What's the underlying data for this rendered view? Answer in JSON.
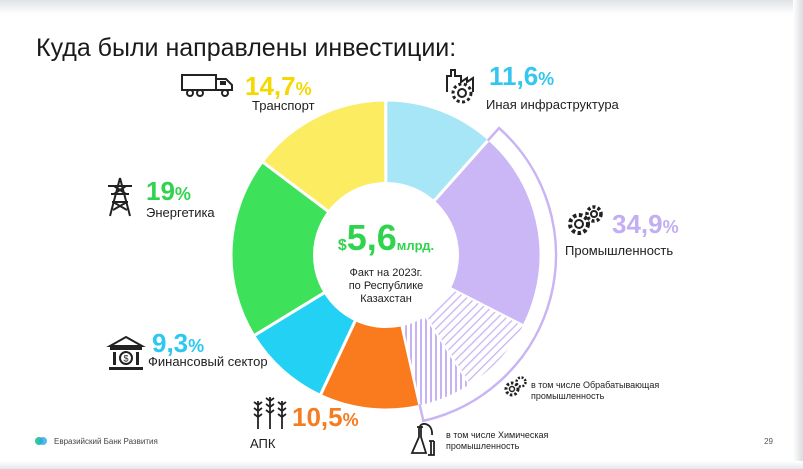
{
  "title": "Куда были направлены инвестиции:",
  "center": {
    "currency": "$",
    "amount": "5,6",
    "unit": "млрд.",
    "note": "Факт на 2023г.\nпо Республике\nКазахстан"
  },
  "chart_data": {
    "type": "pie",
    "title": "Куда были направлены инвестиции:",
    "unit": "%",
    "categories": [
      "Транспорт",
      "Иная инфраструктура",
      "Промышленность",
      "АПК",
      "Финансовый сектор",
      "Энергетика"
    ],
    "values": [
      14.7,
      11.6,
      34.9,
      10.5,
      9.3,
      19.0
    ],
    "value_labels": [
      "14,7",
      "11,6",
      "34,9",
      "10,5",
      "9,3",
      "19"
    ],
    "colors": [
      "#fbec62",
      "#a6e6f6",
      "#cbb6f6",
      "#fa7a1e",
      "#22d1f3",
      "#3ee25a"
    ],
    "label_colors": [
      "#f5d800",
      "#34c6ee",
      "#c3aef4",
      "#f57c20",
      "#2cc8f0",
      "#2fd34e"
    ],
    "sub_segments": [
      {
        "parent": "Промышленность",
        "label": "в том числе Обрабатывающая промышленность",
        "pattern": "diagonal-hatch"
      },
      {
        "parent": "Промышленность",
        "label": "в том числе Химическая промышленность",
        "pattern": "vertical-hatch"
      }
    ]
  },
  "icons": {
    "transport": "truck-icon",
    "infrastructure": "factory-gear-icon",
    "industry": "gears-icon",
    "agro": "wheat-icon",
    "finance": "bank-icon",
    "energy": "power-tower-icon",
    "manufacturing": "gears-icon",
    "chemical": "lab-flask-icon"
  },
  "footer": {
    "logo_text": "Евразийский Банк Развития",
    "page": "29"
  }
}
